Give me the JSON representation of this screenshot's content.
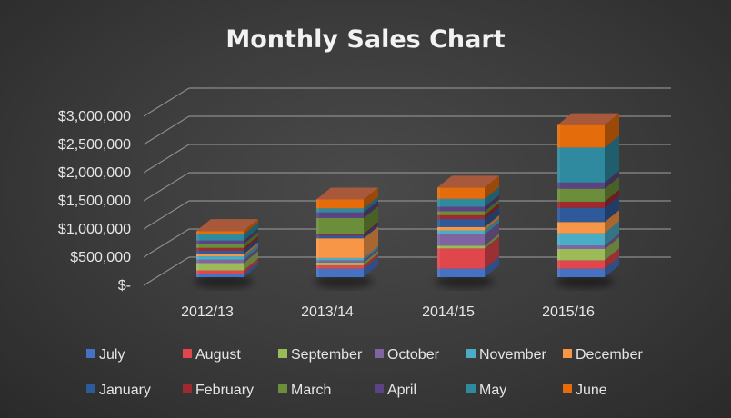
{
  "chart_data": {
    "type": "bar",
    "stacked": true,
    "three_d": true,
    "title": "Monthly Sales Chart",
    "xlabel": "",
    "ylabel": "",
    "ylim": [
      0,
      3000000
    ],
    "y_ticks": [
      {
        "value": 0,
        "label": "$-"
      },
      {
        "value": 500000,
        "label": "$500,000"
      },
      {
        "value": 1000000,
        "label": "$1,000,000"
      },
      {
        "value": 1500000,
        "label": "$1,500,000"
      },
      {
        "value": 2000000,
        "label": "$2,000,000"
      },
      {
        "value": 2500000,
        "label": "$2,500,000"
      },
      {
        "value": 3000000,
        "label": "$3,000,000"
      }
    ],
    "grid": true,
    "legend_position": "bottom",
    "categories": [
      "2012/13",
      "2013/14",
      "2014/15",
      "2015/16"
    ],
    "series": [
      {
        "name": "July",
        "color": "#4472c4",
        "values": [
          60000,
          150000,
          150000,
          150000
        ]
      },
      {
        "name": "August",
        "color": "#e0474c",
        "values": [
          60000,
          60000,
          360000,
          150000
        ]
      },
      {
        "name": "September",
        "color": "#9bbb59",
        "values": [
          130000,
          50000,
          50000,
          200000
        ]
      },
      {
        "name": "October",
        "color": "#8064a2",
        "values": [
          60000,
          40000,
          200000,
          60000
        ]
      },
      {
        "name": "November",
        "color": "#4bacc6",
        "values": [
          60000,
          40000,
          70000,
          220000
        ]
      },
      {
        "name": "December",
        "color": "#f79646",
        "values": [
          40000,
          350000,
          60000,
          200000
        ]
      },
      {
        "name": "January",
        "color": "#2e5a99",
        "values": [
          60000,
          50000,
          140000,
          250000
        ]
      },
      {
        "name": "February",
        "color": "#9e2a2f",
        "values": [
          50000,
          30000,
          70000,
          110000
        ]
      },
      {
        "name": "March",
        "color": "#6b8e3a",
        "values": [
          70000,
          280000,
          70000,
          230000
        ]
      },
      {
        "name": "April",
        "color": "#5c4382",
        "values": [
          60000,
          100000,
          80000,
          110000
        ]
      },
      {
        "name": "May",
        "color": "#2f8aa0",
        "values": [
          110000,
          70000,
          140000,
          620000
        ]
      },
      {
        "name": "June",
        "color": "#e46c0a",
        "values": [
          60000,
          160000,
          200000,
          400000
        ]
      }
    ]
  }
}
